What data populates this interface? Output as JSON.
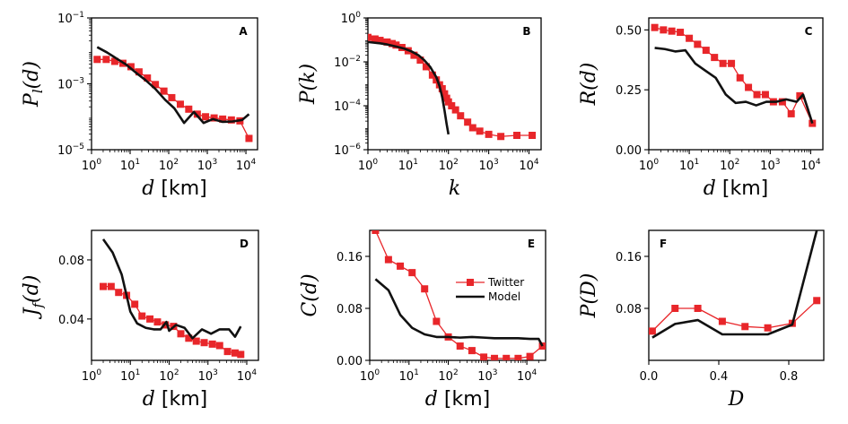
{
  "figure": {
    "legend": {
      "twitter": "Twitter",
      "model": "Model"
    },
    "colors": {
      "twitter": "#e8262a",
      "model": "#111111"
    }
  },
  "chart_data": [
    {
      "panel": "A",
      "type": "line",
      "xscale": "log",
      "yscale": "log",
      "xlabel": "d [km]",
      "ylabel": "P_l(d)",
      "xlim": [
        1,
        20000
      ],
      "ylim": [
        1e-05,
        0.1
      ],
      "xticks": [
        "10^0",
        "10^1",
        "10^2",
        "10^3",
        "10^4"
      ],
      "yticks": [
        "10^-5",
        "10^-3",
        "10^-1"
      ],
      "series": [
        {
          "name": "Twitter",
          "x": [
            1.4,
            2.4,
            4,
            6.5,
            10.5,
            17,
            28,
            45,
            75,
            120,
            200,
            330,
            550,
            900,
            1500,
            2500,
            4200,
            7000,
            12000
          ],
          "y": [
            0.0055,
            0.0055,
            0.0048,
            0.0042,
            0.0033,
            0.0023,
            0.0015,
            0.00095,
            0.0006,
            0.00038,
            0.00024,
            0.00017,
            0.00012,
            0.0001,
            9.2e-05,
            8.5e-05,
            8e-05,
            7.5e-05,
            2.2e-05
          ]
        },
        {
          "name": "Model",
          "x": [
            1.4,
            2.5,
            4.5,
            8,
            14,
            25,
            45,
            80,
            140,
            250,
            450,
            800,
            1400,
            2500,
            4500,
            8000,
            12000
          ],
          "y": [
            0.013,
            0.009,
            0.0058,
            0.0038,
            0.0022,
            0.0013,
            0.0007,
            0.00033,
            0.00018,
            6.5e-05,
            0.00014,
            6.5e-05,
            8.5e-05,
            7e-05,
            7.2e-05,
            8e-05,
            0.00012
          ]
        }
      ]
    },
    {
      "panel": "B",
      "type": "line",
      "xscale": "log",
      "yscale": "log",
      "xlabel": "k",
      "ylabel": "P(k)",
      "xlim": [
        1,
        20000
      ],
      "ylim": [
        1e-06,
        1
      ],
      "xticks": [
        "10^0",
        "10^1",
        "10^2",
        "10^3",
        "10^4"
      ],
      "yticks": [
        "10^-6",
        "10^-4",
        "10^-2",
        "10^0"
      ],
      "series": [
        {
          "name": "Twitter",
          "x": [
            1,
            1.5,
            2,
            3,
            4,
            5,
            7,
            10,
            14,
            20,
            28,
            40,
            50,
            60,
            70,
            80,
            90,
            100,
            120,
            150,
            200,
            300,
            400,
            600,
            1000,
            2000,
            5000,
            12000
          ],
          "y": [
            0.13,
            0.11,
            0.095,
            0.08,
            0.068,
            0.058,
            0.045,
            0.032,
            0.02,
            0.012,
            0.006,
            0.0025,
            0.0015,
            0.0009,
            0.0006,
            0.00035,
            0.00022,
            0.00015,
            0.0001,
            6.5e-05,
            3.5e-05,
            1.8e-05,
            1e-05,
            7e-06,
            5e-06,
            4e-06,
            4.5e-06,
            4.5e-06
          ]
        },
        {
          "name": "Model",
          "x": [
            1,
            2,
            3,
            5,
            8,
            12,
            18,
            25,
            35,
            50,
            60,
            70,
            80,
            90,
            100
          ],
          "y": [
            0.08,
            0.07,
            0.062,
            0.05,
            0.04,
            0.03,
            0.02,
            0.012,
            0.006,
            0.002,
            0.0008,
            0.00025,
            6e-05,
            1.5e-05,
            5e-06
          ]
        }
      ]
    },
    {
      "panel": "C",
      "type": "line",
      "xscale": "log",
      "yscale": "linear",
      "xlabel": "d [km]",
      "ylabel": "R(d)",
      "xlim": [
        1,
        20000
      ],
      "ylim": [
        0,
        0.55
      ],
      "xticks": [
        "10^0",
        "10^1",
        "10^2",
        "10^3",
        "10^4"
      ],
      "yticks": [
        "0.00",
        "0.25",
        "0.50"
      ],
      "series": [
        {
          "name": "Twitter",
          "x": [
            1.4,
            2.3,
            3.7,
            6,
            10,
            16,
            26,
            42,
            68,
            110,
            180,
            290,
            470,
            760,
            1200,
            2000,
            3300,
            5400,
            11000
          ],
          "y": [
            0.51,
            0.5,
            0.495,
            0.49,
            0.465,
            0.44,
            0.415,
            0.385,
            0.36,
            0.36,
            0.3,
            0.26,
            0.23,
            0.23,
            0.2,
            0.2,
            0.15,
            0.225,
            0.11
          ]
        },
        {
          "name": "Model",
          "x": [
            1.4,
            2.5,
            4.5,
            8,
            14,
            25,
            45,
            80,
            140,
            250,
            450,
            800,
            1400,
            2500,
            4500,
            6500,
            8500,
            11000
          ],
          "y": [
            0.425,
            0.42,
            0.41,
            0.415,
            0.36,
            0.33,
            0.3,
            0.23,
            0.195,
            0.2,
            0.185,
            0.2,
            0.2,
            0.21,
            0.2,
            0.23,
            0.17,
            0.11
          ]
        }
      ]
    },
    {
      "panel": "D",
      "type": "line",
      "xscale": "log",
      "yscale": "linear",
      "xlabel": "d [km]",
      "ylabel": "J_f(d)",
      "xlim": [
        1,
        20000
      ],
      "ylim": [
        0.012,
        0.1
      ],
      "xticks": [
        "10^0",
        "10^1",
        "10^2",
        "10^3",
        "10^4"
      ],
      "yticks": [
        "0.04",
        "0.08"
      ],
      "series": [
        {
          "name": "Twitter",
          "x": [
            2,
            3.2,
            5,
            8,
            13,
            20,
            32,
            50,
            80,
            130,
            200,
            320,
            500,
            800,
            1300,
            2000,
            3200,
            5000,
            7000
          ],
          "y": [
            0.062,
            0.062,
            0.058,
            0.056,
            0.05,
            0.042,
            0.04,
            0.038,
            0.036,
            0.035,
            0.03,
            0.027,
            0.025,
            0.024,
            0.023,
            0.022,
            0.018,
            0.017,
            0.016
          ]
        },
        {
          "name": "Model",
          "x": [
            2,
            3.5,
            6,
            10,
            15,
            25,
            40,
            60,
            85,
            100,
            150,
            250,
            400,
            700,
            1200,
            2000,
            3500,
            5000,
            7000
          ],
          "y": [
            0.094,
            0.085,
            0.07,
            0.045,
            0.037,
            0.034,
            0.033,
            0.033,
            0.038,
            0.032,
            0.036,
            0.034,
            0.027,
            0.033,
            0.03,
            0.033,
            0.033,
            0.028,
            0.035
          ]
        }
      ]
    },
    {
      "panel": "E",
      "type": "line",
      "xscale": "log",
      "yscale": "linear",
      "xlabel": "d [km]",
      "ylabel": "C(d)",
      "xlim": [
        1,
        30000
      ],
      "ylim": [
        0,
        0.2
      ],
      "xticks": [
        "10^0",
        "10^1",
        "10^2",
        "10^3",
        "10^4"
      ],
      "yticks": [
        "0.00",
        "0.08",
        "0.16"
      ],
      "series": [
        {
          "name": "Twitter",
          "x": [
            1.4,
            3,
            6,
            12,
            25,
            50,
            100,
            200,
            400,
            800,
            1500,
            3000,
            6000,
            12000,
            25000
          ],
          "y": [
            0.2,
            0.155,
            0.145,
            0.135,
            0.11,
            0.06,
            0.036,
            0.022,
            0.015,
            0.005,
            0.003,
            0.003,
            0.003,
            0.006,
            0.022
          ]
        },
        {
          "name": "Model",
          "x": [
            1.4,
            3,
            6,
            12,
            25,
            50,
            100,
            200,
            400,
            800,
            1500,
            3000,
            6000,
            12000,
            20000,
            25000
          ],
          "y": [
            0.125,
            0.108,
            0.07,
            0.05,
            0.04,
            0.036,
            0.036,
            0.035,
            0.036,
            0.035,
            0.034,
            0.034,
            0.034,
            0.033,
            0.033,
            0.022
          ]
        }
      ]
    },
    {
      "panel": "F",
      "type": "line",
      "xscale": "linear",
      "yscale": "linear",
      "xlabel": "D",
      "ylabel": "P(D)",
      "xlim": [
        0,
        1
      ],
      "ylim": [
        0,
        0.2
      ],
      "xticks": [
        "0.0",
        "0.4",
        "0.8"
      ],
      "yticks": [
        "0.08",
        "0.16"
      ],
      "series": [
        {
          "name": "Twitter",
          "x": [
            0.02,
            0.15,
            0.28,
            0.42,
            0.55,
            0.68,
            0.82,
            0.96
          ],
          "y": [
            0.045,
            0.08,
            0.08,
            0.06,
            0.052,
            0.05,
            0.057,
            0.092
          ]
        },
        {
          "name": "Model",
          "x": [
            0.02,
            0.15,
            0.28,
            0.42,
            0.55,
            0.68,
            0.82,
            0.96
          ],
          "y": [
            0.035,
            0.056,
            0.062,
            0.04,
            0.04,
            0.04,
            0.055,
            0.2
          ]
        }
      ]
    }
  ]
}
